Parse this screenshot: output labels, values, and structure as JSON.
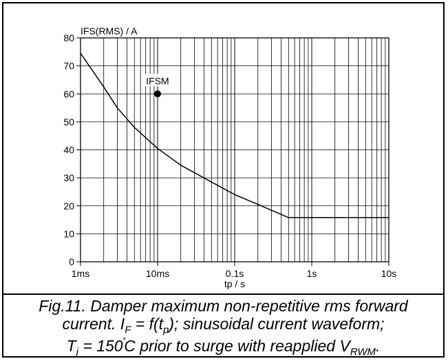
{
  "chart_data": {
    "type": "line",
    "ylabel": "IFS(RMS) / A",
    "xlabel": "tp / s",
    "x_scale": "log",
    "xlim": [
      "1ms",
      "10s"
    ],
    "ylim": [
      0,
      80
    ],
    "grid": true,
    "x_ticks": [
      {
        "value": 0.001,
        "label": "1ms"
      },
      {
        "value": 0.01,
        "label": "10ms"
      },
      {
        "value": 0.1,
        "label": "0.1s"
      },
      {
        "value": 1,
        "label": "1s"
      },
      {
        "value": 10,
        "label": "10s"
      }
    ],
    "y_ticks": [
      0,
      10,
      20,
      30,
      40,
      50,
      60,
      70,
      80
    ],
    "series": [
      {
        "points": [
          {
            "x": 0.001,
            "y": 74.5
          },
          {
            "x": 0.002,
            "y": 62.5
          },
          {
            "x": 0.003,
            "y": 55
          },
          {
            "x": 0.005,
            "y": 48
          },
          {
            "x": 0.01,
            "y": 40.5
          },
          {
            "x": 0.02,
            "y": 34.5
          },
          {
            "x": 0.05,
            "y": 28.5
          },
          {
            "x": 0.1,
            "y": 24
          },
          {
            "x": 0.2,
            "y": 20.5
          },
          {
            "x": 0.5,
            "y": 15.8
          },
          {
            "x": 10,
            "y": 15.8
          }
        ]
      }
    ],
    "markers": [
      {
        "label": "IFSM",
        "x": 0.01,
        "y": 60
      }
    ]
  },
  "caption": {
    "line1": "Fig.11.  Damper maximum non-repetitive rms forward",
    "line2_a": "current. I",
    "line2_sub1": "F",
    "line2_b": " = f(t",
    "line2_sub2": "p",
    "line2_c": "); sinusoidal current waveform;",
    "line3_a": "T",
    "line3_sub1": "j",
    "line3_b": " = 150",
    "line3_deg": "˚",
    "line3_c": "C prior to surge with reapplied V",
    "line3_sub2": "RWM",
    "line3_d": "."
  }
}
